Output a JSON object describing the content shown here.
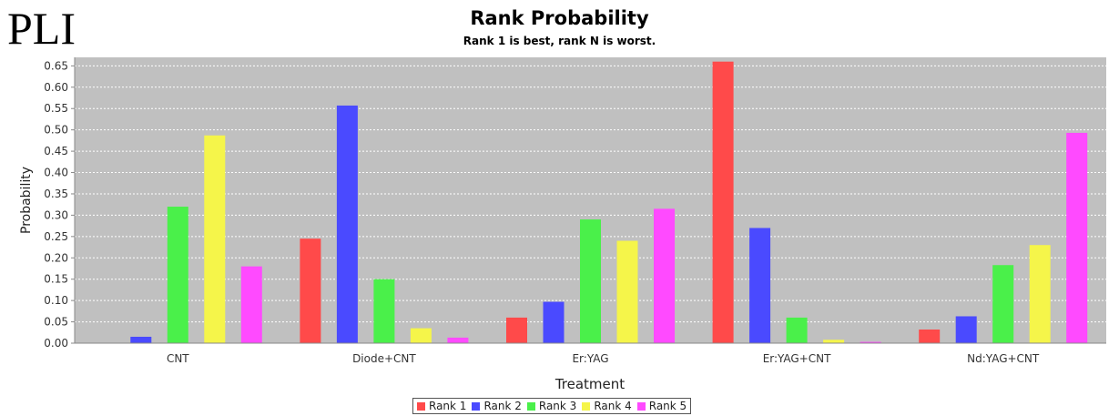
{
  "overlay_text": "PLI",
  "chart_data": {
    "type": "bar",
    "title": "Rank Probability",
    "subtitle": "Rank 1 is best, rank N is worst.",
    "xlabel": "Treatment",
    "ylabel": "Probability",
    "ylim": [
      0,
      0.67
    ],
    "yticks": [
      "0.00",
      "0.05",
      "0.10",
      "0.15",
      "0.20",
      "0.25",
      "0.30",
      "0.35",
      "0.40",
      "0.45",
      "0.50",
      "0.55",
      "0.60",
      "0.65"
    ],
    "grid": true,
    "legend_position": "bottom-center",
    "categories": [
      "CNT",
      "Diode+CNT",
      "Er:YAG",
      "Er:YAG+CNT",
      "Nd:YAG+CNT"
    ],
    "series": [
      {
        "name": "Rank 1",
        "color": "#ff4a4a",
        "values": [
          0.0,
          0.245,
          0.06,
          0.66,
          0.032
        ]
      },
      {
        "name": "Rank 2",
        "color": "#4a4aff",
        "values": [
          0.015,
          0.557,
          0.097,
          0.27,
          0.063
        ]
      },
      {
        "name": "Rank 3",
        "color": "#4af04a",
        "values": [
          0.32,
          0.15,
          0.29,
          0.06,
          0.183
        ]
      },
      {
        "name": "Rank 4",
        "color": "#f5f54a",
        "values": [
          0.487,
          0.035,
          0.24,
          0.008,
          0.23
        ]
      },
      {
        "name": "Rank 5",
        "color": "#ff4aff",
        "values": [
          0.18,
          0.013,
          0.315,
          0.003,
          0.493
        ]
      }
    ]
  }
}
